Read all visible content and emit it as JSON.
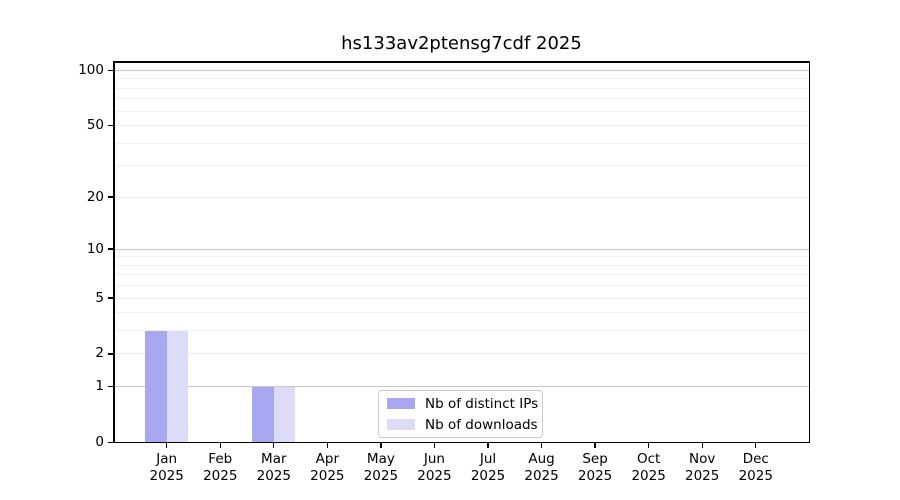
{
  "chart_data": {
    "type": "bar",
    "title": "hs133av2ptensg7cdf 2025",
    "categories": [
      "Jan 2025",
      "Feb 2025",
      "Mar 2025",
      "Apr 2025",
      "May 2025",
      "Jun 2025",
      "Jul 2025",
      "Aug 2025",
      "Sep 2025",
      "Oct 2025",
      "Nov 2025",
      "Dec 2025"
    ],
    "series": [
      {
        "name": "Nb of distinct IPs",
        "color": "#a7a7f2",
        "values": [
          3,
          0,
          1,
          0,
          0,
          0,
          0,
          0,
          0,
          0,
          0,
          0
        ]
      },
      {
        "name": "Nb of downloads",
        "color": "#dcdcf8",
        "values": [
          3,
          0,
          1,
          0,
          0,
          0,
          0,
          0,
          0,
          0,
          0,
          0
        ]
      }
    ],
    "yscale": "log1p",
    "ylim": [
      0,
      113
    ],
    "yticks": [
      0,
      1,
      2,
      5,
      10,
      20,
      50,
      100
    ],
    "yticks_minor": [
      3,
      4,
      6,
      7,
      8,
      9,
      30,
      40,
      60,
      70,
      80,
      90,
      110
    ],
    "grid": "horizontal",
    "legend_position": "inside-bottom-center"
  },
  "colors": {
    "grid_power10": "#c8c8c8",
    "grid_major": "#ececec",
    "grid_minor": "#f2f2f2",
    "axis": "#000000",
    "background": "#ffffff"
  }
}
